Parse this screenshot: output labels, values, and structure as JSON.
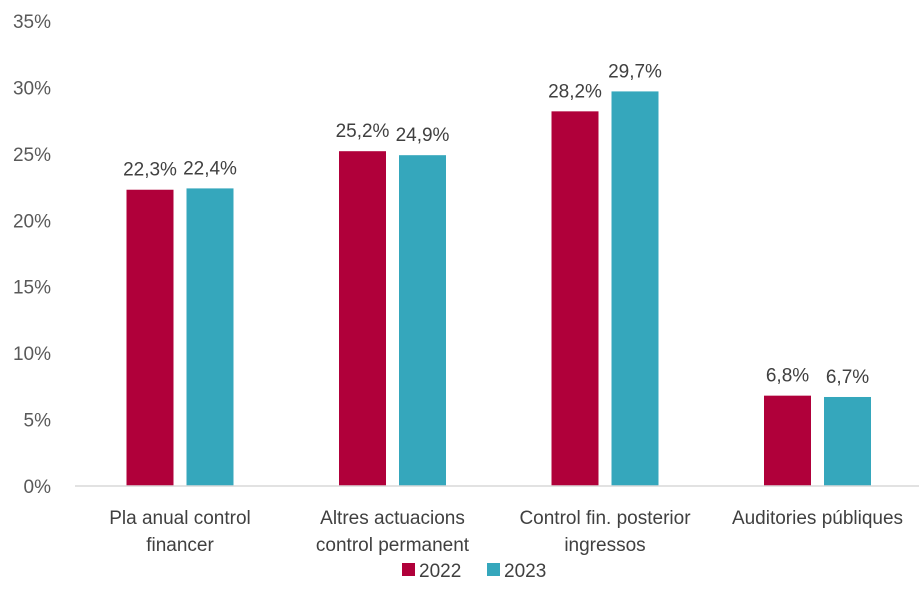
{
  "chart_data": {
    "type": "bar",
    "title": "",
    "xlabel": "",
    "ylabel": "",
    "ylim": [
      0,
      35
    ],
    "yticks": [
      0,
      5,
      10,
      15,
      20,
      25,
      30,
      35
    ],
    "y_tick_labels": [
      "0%",
      "5%",
      "10%",
      "15%",
      "20%",
      "25%",
      "30%",
      "35%"
    ],
    "categories": [
      [
        "Pla anual control",
        "financer"
      ],
      [
        "Altres actuacions",
        "control permanent"
      ],
      [
        "Control fin. posterior",
        "ingressos"
      ],
      [
        "Auditories públiques"
      ]
    ],
    "series": [
      {
        "name": "2022",
        "color": "#B0003A",
        "values": [
          22.3,
          25.2,
          28.2,
          6.8
        ],
        "labels": [
          "22,3%",
          "25,2%",
          "28,2%",
          "6,8%"
        ]
      },
      {
        "name": "2023",
        "color": "#35A7BC",
        "values": [
          22.4,
          24.9,
          29.7,
          6.7
        ],
        "labels": [
          "22,4%",
          "24,9%",
          "29,7%",
          "6,7%"
        ]
      }
    ],
    "grid": false,
    "legend_position": "bottom-center",
    "axis_color": "#D9D9D9"
  }
}
